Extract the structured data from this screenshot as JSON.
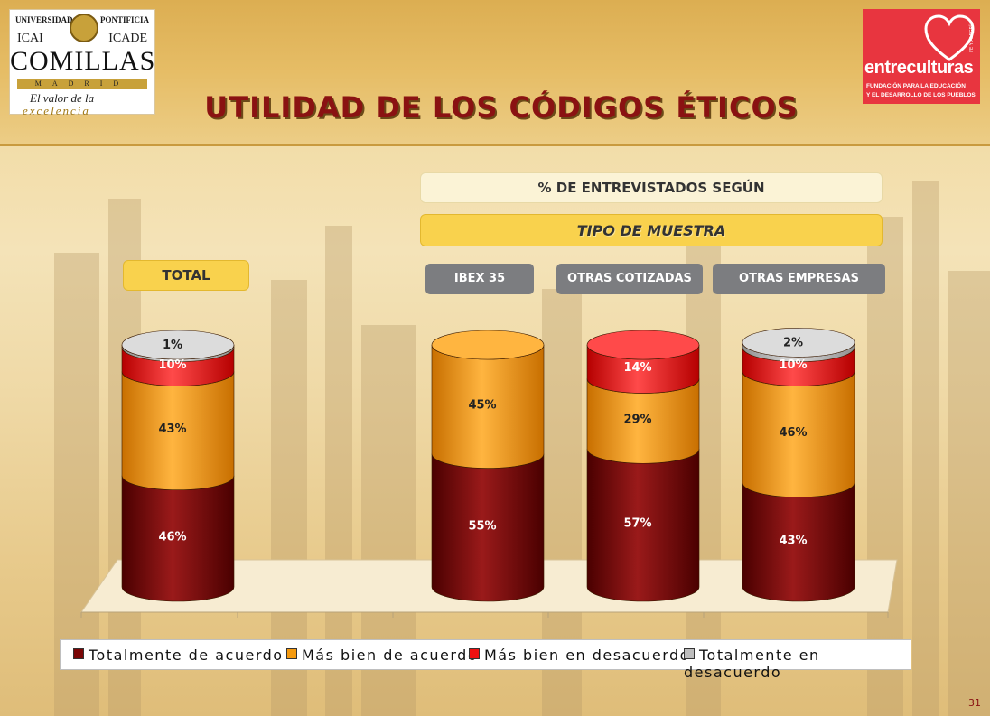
{
  "header": {
    "title": "UTILIDAD DE LOS CÓDIGOS ÉTICOS",
    "logo_left": {
      "top_left": "UNIVERSIDAD",
      "top_right": "PONTIFICIA",
      "icai": "ICAI",
      "icade": "ICADE",
      "name": "COMILLAS",
      "city": "MADRID",
      "tagline_1": "El valor de la",
      "tagline_2": "excelencia"
    },
    "logo_right": {
      "name": "entreculturas",
      "tagline_1": "FUNDACIÓN PARA LA EDUCACIÓN",
      "tagline_2": "Y EL DESARROLLO DE LOS PUEBLOS",
      "side": "FE Y ALEGRÍA"
    }
  },
  "labels": {
    "entrevistados": "% DE ENTREVISTADOS SEGÚN",
    "tipo_muestra": "TIPO DE MUESTRA",
    "total": "TOTAL"
  },
  "colors": {
    "totalmente_acuerdo": "#7a0606",
    "mas_bien_acuerdo": "#f59a0f",
    "mas_bien_desacuerdo": "#ee1111",
    "totalmente_desacuerdo": "#bdbdbd"
  },
  "chart_data": {
    "type": "bar",
    "stacked": true,
    "style": "3d-cylinder",
    "categories": [
      "TOTAL",
      "IBEX 35",
      "OTRAS COTIZADAS",
      "OTRAS EMPRESAS"
    ],
    "series": [
      {
        "name": "Totalmente de acuerdo",
        "values": [
          46,
          55,
          57,
          43
        ]
      },
      {
        "name": "Más bien de acuerdo",
        "values": [
          43,
          45,
          29,
          46
        ]
      },
      {
        "name": "Más bien en desacuerdo",
        "values": [
          10,
          0,
          14,
          10
        ]
      },
      {
        "name": "Totalmente en desacuerdo",
        "values": [
          1,
          0,
          0,
          2
        ]
      }
    ],
    "value_labels": [
      [
        "46%",
        "43%",
        "10%",
        "1%"
      ],
      [
        "55%",
        "45%",
        "",
        ""
      ],
      [
        "57%",
        "29%",
        "14%",
        ""
      ],
      [
        "43%",
        "46%",
        "10%",
        "2%"
      ]
    ],
    "ylim": [
      0,
      100
    ],
    "legend_position": "bottom",
    "grid": false
  },
  "page_number": "31"
}
